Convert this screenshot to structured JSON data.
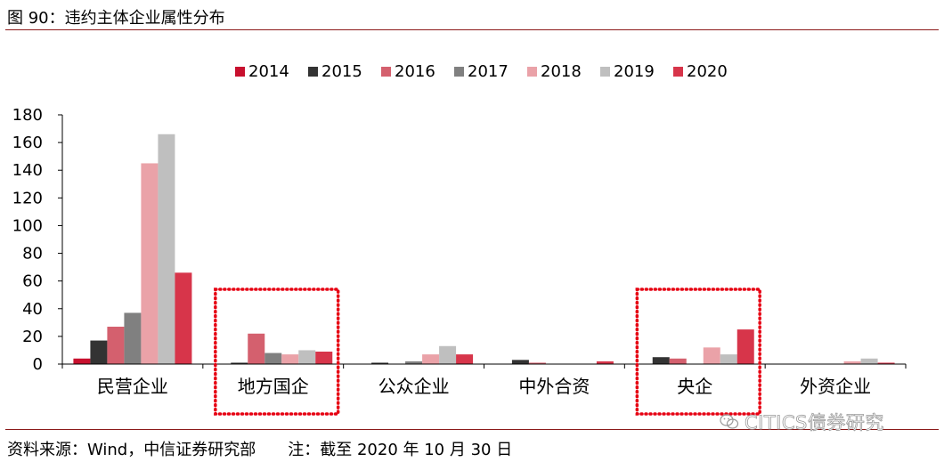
{
  "header": {
    "title": "图 90：违约主体企业属性分布"
  },
  "footer": {
    "source": "资料来源：Wind，中信证券研究部",
    "note": "注：截至 2020 年 10 月 30 日"
  },
  "watermark": {
    "text": "CITICS债券研究",
    "icon": "wechat-icon"
  },
  "colors": {
    "rule": "#8b1a1a",
    "series": [
      "#c8102e",
      "#333333",
      "#d4606e",
      "#808080",
      "#eaa2a8",
      "#bfbfbf",
      "#d7354a"
    ],
    "highlight_box": "#e60012"
  },
  "chart_data": {
    "type": "bar",
    "title": "",
    "xlabel": "",
    "ylabel": "",
    "ylim": [
      0,
      180
    ],
    "yticks": [
      "0",
      "20",
      "40",
      "60",
      "80",
      "100",
      "120",
      "140",
      "160",
      "180"
    ],
    "legend_position": "top",
    "grid": false,
    "categories": [
      "民营企业",
      "地方国企",
      "公众企业",
      "中外合资",
      "央企",
      "外资企业"
    ],
    "series": [
      {
        "name": "2014",
        "values": [
          4,
          0,
          0,
          0,
          0,
          0
        ]
      },
      {
        "name": "2015",
        "values": [
          17,
          1,
          1,
          3,
          5,
          0
        ]
      },
      {
        "name": "2016",
        "values": [
          27,
          22,
          0,
          1,
          4,
          0
        ]
      },
      {
        "name": "2017",
        "values": [
          37,
          8,
          2,
          0,
          0,
          0
        ]
      },
      {
        "name": "2018",
        "values": [
          145,
          7,
          7,
          0,
          12,
          2
        ]
      },
      {
        "name": "2019",
        "values": [
          166,
          10,
          13,
          0,
          7,
          4
        ]
      },
      {
        "name": "2020",
        "values": [
          66,
          9,
          7,
          2,
          25,
          1
        ]
      }
    ],
    "highlighted_categories": [
      "地方国企",
      "央企"
    ]
  }
}
